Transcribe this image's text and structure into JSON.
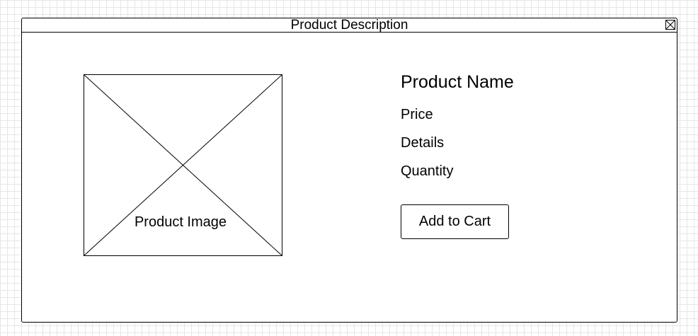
{
  "window": {
    "title": "Product Description",
    "close_icon": "close-icon"
  },
  "image": {
    "caption": "Product Image",
    "icon": "image-placeholder-icon"
  },
  "product": {
    "name": "Product Name",
    "price_label": "Price",
    "details_label": "Details",
    "quantity_label": "Quantity"
  },
  "actions": {
    "add_to_cart_label": "Add to Cart"
  }
}
